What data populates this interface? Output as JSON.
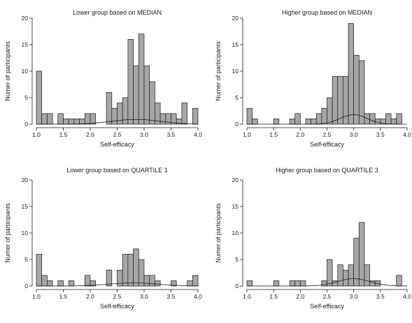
{
  "chart_data": [
    {
      "type": "bar",
      "title": "Lower group based on MEDIAN",
      "xlabel": "Self-efficacy",
      "ylabel": "Numer of participants",
      "xlim": [
        1.0,
        4.0
      ],
      "ylim": [
        0,
        20
      ],
      "xticks": [
        "1.0",
        "1.5",
        "2.0",
        "2.5",
        "3.0",
        "3.5",
        "4.0"
      ],
      "yticks": [
        "0",
        "5",
        "10",
        "15",
        "20"
      ],
      "bin_width": 0.1,
      "x": [
        1.0,
        1.1,
        1.2,
        1.4,
        1.5,
        1.6,
        1.7,
        1.8,
        1.9,
        2.0,
        2.3,
        2.4,
        2.5,
        2.6,
        2.7,
        2.8,
        2.9,
        3.0,
        3.1,
        3.2,
        3.3,
        3.4,
        3.5,
        3.6,
        3.7,
        3.9
      ],
      "values": [
        10,
        2,
        2,
        2,
        1,
        1,
        1,
        1,
        2,
        2,
        6,
        3,
        4,
        5,
        16,
        11,
        17,
        11,
        8,
        4,
        2,
        2,
        2,
        1,
        4,
        3
      ],
      "curve": {
        "mean": 2.85,
        "sd": 0.45,
        "peak": 0.9
      }
    },
    {
      "type": "bar",
      "title": "Higher group based on MEDIAN",
      "xlabel": "Self-efficacy",
      "ylabel": "Numer of participants",
      "xlim": [
        1.0,
        4.0
      ],
      "ylim": [
        0,
        20
      ],
      "xticks": [
        "1.0",
        "1.5",
        "2.0",
        "2.5",
        "3.0",
        "3.5",
        "4.0"
      ],
      "yticks": [
        "0",
        "5",
        "10",
        "15",
        "20"
      ],
      "bin_width": 0.1,
      "x": [
        1.0,
        1.1,
        1.5,
        1.8,
        1.9,
        2.1,
        2.2,
        2.3,
        2.4,
        2.5,
        2.6,
        2.7,
        2.8,
        2.9,
        3.0,
        3.1,
        3.2,
        3.3,
        3.4,
        3.5,
        3.6,
        3.7,
        3.8
      ],
      "values": [
        3,
        1,
        1,
        1,
        2,
        1,
        1,
        2,
        3,
        5,
        9,
        9,
        9,
        19,
        13,
        12,
        2,
        2,
        1,
        1,
        2,
        1,
        2
      ],
      "curve": {
        "mean": 3.0,
        "sd": 0.25,
        "peak": 1.8
      }
    },
    {
      "type": "bar",
      "title": "Lower group based on QUARTILE 1",
      "xlabel": "Self-efficacy",
      "ylabel": "Numer of participants",
      "xlim": [
        1.0,
        4.0
      ],
      "ylim": [
        0,
        20
      ],
      "xticks": [
        "1.0",
        "1.5",
        "2.0",
        "2.5",
        "3.0",
        "3.5",
        "4.0"
      ],
      "yticks": [
        "0",
        "5",
        "10",
        "15",
        "20"
      ],
      "bin_width": 0.1,
      "x": [
        1.0,
        1.1,
        1.2,
        1.4,
        1.6,
        1.9,
        2.0,
        2.3,
        2.5,
        2.6,
        2.7,
        2.8,
        2.9,
        3.0,
        3.1,
        3.2,
        3.5,
        3.8,
        3.9
      ],
      "values": [
        6,
        2,
        1,
        1,
        1,
        2,
        1,
        3,
        3,
        6,
        6,
        7,
        5,
        2,
        2,
        1,
        1,
        1,
        2
      ],
      "curve": {
        "mean": 2.8,
        "sd": 0.45,
        "peak": 0.6
      }
    },
    {
      "type": "bar",
      "title": "Higher group based on QUARTILE 3",
      "xlabel": "Self-efficacy",
      "ylabel": "Numer of participants",
      "xlim": [
        1.0,
        4.0
      ],
      "ylim": [
        0,
        20
      ],
      "xticks": [
        "1.0",
        "1.5",
        "2.0",
        "2.5",
        "3.0",
        "3.5",
        "4.0"
      ],
      "yticks": [
        "0",
        "5",
        "10",
        "15",
        "20"
      ],
      "bin_width": 0.1,
      "x": [
        1.0,
        1.5,
        1.8,
        1.9,
        2.0,
        2.4,
        2.5,
        2.6,
        2.7,
        2.8,
        2.9,
        3.0,
        3.1,
        3.2,
        3.3,
        3.4,
        3.8
      ],
      "values": [
        1,
        1,
        1,
        1,
        1,
        1,
        5,
        1,
        4,
        3,
        4,
        9,
        12,
        4,
        1,
        1,
        2
      ],
      "curve": {
        "mean": 3.0,
        "sd": 0.3,
        "peak": 1.4
      }
    }
  ]
}
